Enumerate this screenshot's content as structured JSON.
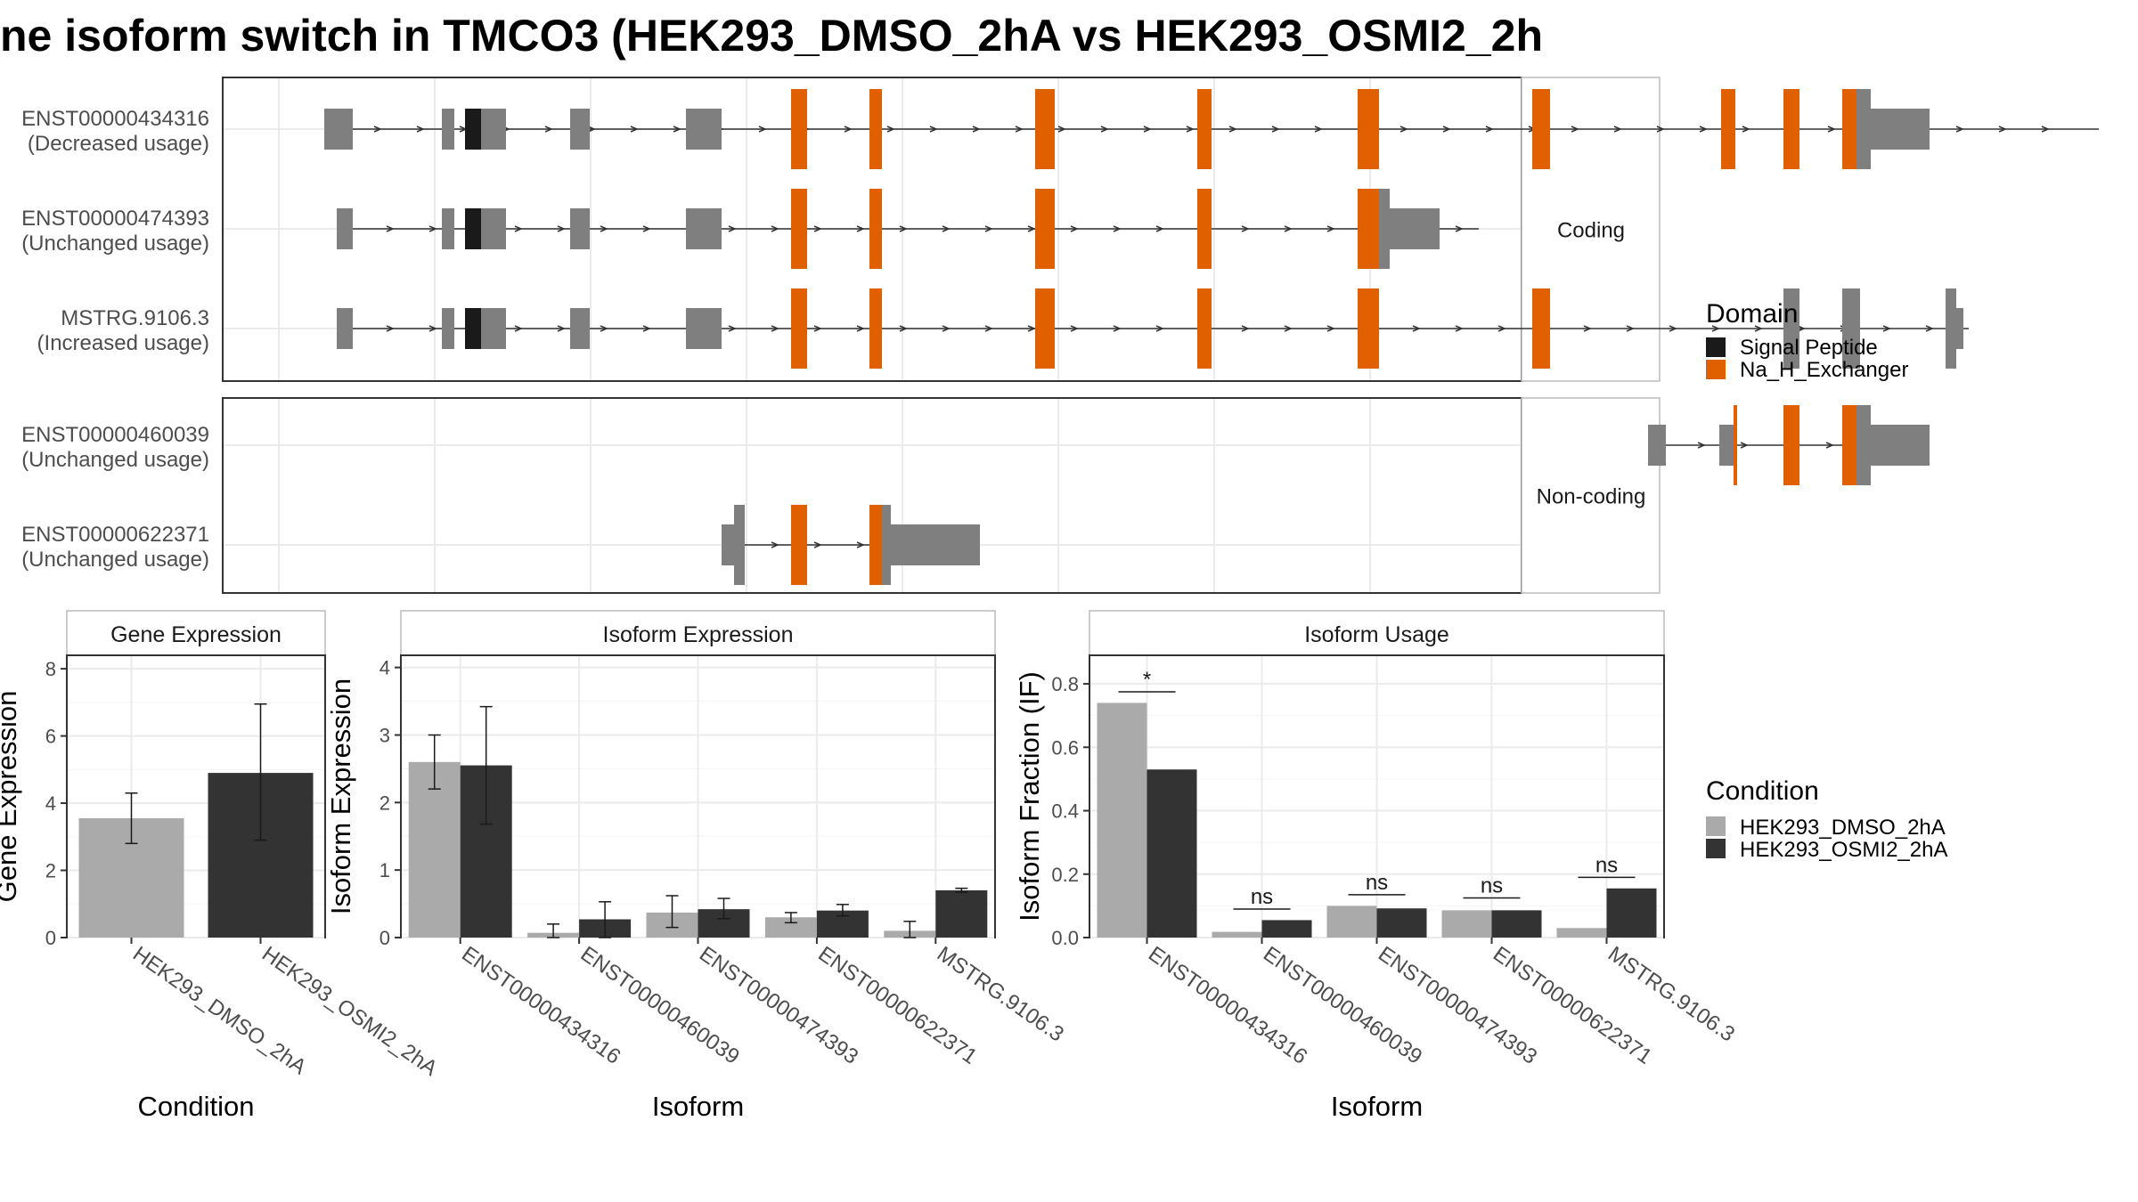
{
  "title": "ne isoform switch in TMCO3 (HEK293_DMSO_2hA vs HEK293_OSMI2_2h",
  "colors": {
    "utr": "#7f7f7f",
    "signal_peptide": "#1a1a1a",
    "na_h_exchanger": "#e06000",
    "dmso": "#aaaaaa",
    "osmi2": "#333333"
  },
  "legend_domain": {
    "title": "Domain",
    "items": [
      {
        "label": "Signal Peptide",
        "color": "#1a1a1a"
      },
      {
        "label": "Na_H_Exchanger",
        "color": "#e06000"
      }
    ]
  },
  "legend_condition": {
    "title": "Condition",
    "items": [
      {
        "label": "HEK293_DMSO_2hA",
        "color": "#aaaaaa"
      },
      {
        "label": "HEK293_OSMI2_2hA",
        "color": "#333333"
      }
    ]
  },
  "structure": {
    "facets": [
      {
        "strip": "Coding",
        "transcripts": [
          {
            "id": "ENST00000434316",
            "usage": "(Decreased usage)",
            "range": [
              57,
              1053
            ],
            "exons": [
              [
                57,
                73,
                "u",
                1
              ],
              [
                123,
                130,
                "u",
                1
              ],
              [
                136,
                145,
                "s",
                1
              ],
              [
                145,
                159,
                "u",
                1
              ],
              [
                195,
                206,
                "u",
                1
              ],
              [
                260,
                280,
                "u",
                1
              ],
              [
                319,
                328,
                "d",
                2
              ],
              [
                363,
                370,
                "d",
                2
              ],
              [
                456,
                467,
                "d",
                2
              ],
              [
                547,
                555,
                "d",
                2
              ],
              [
                637,
                649,
                "d",
                2
              ],
              [
                735,
                745,
                "d",
                2
              ],
              [
                841,
                849,
                "d",
                2
              ],
              [
                876,
                885,
                "d",
                2
              ],
              [
                909,
                917,
                "d",
                2
              ],
              [
                917,
                925,
                "u",
                2
              ],
              [
                925,
                958,
                "u",
                1
              ]
            ]
          },
          {
            "id": "ENST00000474393",
            "usage": "(Unchanged usage)",
            "range": [
              64,
              705
            ],
            "exons": [
              [
                64,
                73,
                "u",
                1
              ],
              [
                123,
                130,
                "u",
                1
              ],
              [
                136,
                145,
                "s",
                1
              ],
              [
                145,
                159,
                "u",
                1
              ],
              [
                195,
                206,
                "u",
                1
              ],
              [
                260,
                280,
                "u",
                1
              ],
              [
                319,
                328,
                "d",
                2
              ],
              [
                363,
                370,
                "d",
                2
              ],
              [
                456,
                467,
                "d",
                2
              ],
              [
                547,
                555,
                "d",
                2
              ],
              [
                637,
                649,
                "d",
                2
              ],
              [
                649,
                655,
                "u",
                2
              ],
              [
                655,
                683,
                "u",
                1
              ]
            ]
          },
          {
            "id": "MSTRG.9106.3",
            "usage": "(Increased usage)",
            "range": [
              64,
              980
            ],
            "exons": [
              [
                64,
                73,
                "u",
                1
              ],
              [
                123,
                130,
                "u",
                1
              ],
              [
                136,
                145,
                "s",
                1
              ],
              [
                145,
                159,
                "u",
                1
              ],
              [
                195,
                206,
                "u",
                1
              ],
              [
                260,
                280,
                "u",
                1
              ],
              [
                319,
                328,
                "d",
                2
              ],
              [
                363,
                370,
                "d",
                2
              ],
              [
                456,
                467,
                "d",
                2
              ],
              [
                547,
                555,
                "d",
                2
              ],
              [
                637,
                649,
                "d",
                2
              ],
              [
                735,
                745,
                "d",
                2
              ],
              [
                876,
                885,
                "u",
                2
              ],
              [
                909,
                919,
                "u",
                2
              ],
              [
                967,
                973,
                "u",
                2
              ],
              [
                973,
                977,
                "u",
                1
              ]
            ]
          }
        ]
      },
      {
        "strip": "Non-coding",
        "transcripts": [
          {
            "id": "ENST00000460039",
            "usage": "(Unchanged usage)",
            "range": [
              800,
              958
            ],
            "exons": [
              [
                800,
                810,
                "u",
                1
              ],
              [
                840,
                848,
                "u",
                1
              ],
              [
                848,
                850,
                "d",
                2
              ],
              [
                876,
                885,
                "d",
                2
              ],
              [
                909,
                917,
                "d",
                2
              ],
              [
                917,
                925,
                "u",
                2
              ],
              [
                925,
                958,
                "u",
                1
              ]
            ]
          },
          {
            "id": "ENST00000622371",
            "usage": "(Unchanged usage)",
            "range": [
              280,
              425
            ],
            "exons": [
              [
                280,
                287,
                "u",
                1
              ],
              [
                287,
                293,
                "u",
                2
              ],
              [
                319,
                328,
                "d",
                2
              ],
              [
                363,
                370,
                "d",
                2
              ],
              [
                370,
                375,
                "u",
                2
              ],
              [
                375,
                425,
                "u",
                1
              ]
            ]
          }
        ]
      }
    ]
  },
  "chart_data": [
    {
      "type": "bar",
      "title": "Gene Expression",
      "xlabel": "Condition",
      "ylabel": "Gene Expression",
      "ylim": [
        0,
        8.4
      ],
      "yticks": [
        "0",
        "2",
        "4",
        "6",
        "8"
      ],
      "categories": [
        "HEK293_DMSO_2hA",
        "HEK293_OSMI2_2hA"
      ],
      "values": [
        3.55,
        4.9
      ],
      "error_low": [
        2.8,
        2.9
      ],
      "error_high": [
        4.3,
        6.95
      ],
      "color_keys": [
        "dmso",
        "osmi2"
      ]
    },
    {
      "type": "bar",
      "title": "Isoform Expression",
      "xlabel": "Isoform",
      "ylabel": "Isoform Expression",
      "ylim": [
        0,
        4.18
      ],
      "yticks": [
        "0",
        "1",
        "2",
        "3",
        "4"
      ],
      "categories": [
        "ENST00000434316",
        "ENST00000460039",
        "ENST00000474393",
        "ENST00000622371",
        "MSTRG.9106.3"
      ],
      "series": [
        {
          "condition": "HEK293_DMSO_2hA",
          "color_key": "dmso",
          "values": [
            2.6,
            0.07,
            0.37,
            0.3,
            0.1
          ],
          "error_low": [
            2.2,
            0.0,
            0.15,
            0.22,
            0.0
          ],
          "error_high": [
            3.0,
            0.2,
            0.62,
            0.37,
            0.24
          ]
        },
        {
          "condition": "HEK293_OSMI2_2hA",
          "color_key": "osmi2",
          "values": [
            2.55,
            0.27,
            0.42,
            0.4,
            0.7
          ],
          "error_low": [
            1.68,
            0.0,
            0.28,
            0.32,
            0.67
          ],
          "error_high": [
            3.42,
            0.53,
            0.58,
            0.49,
            0.73
          ]
        }
      ]
    },
    {
      "type": "bar",
      "title": "Isoform Usage",
      "xlabel": "Isoform",
      "ylabel": "Isoform Fraction (IF)",
      "ylim": [
        0,
        0.89
      ],
      "yticks": [
        "0.0",
        "0.2",
        "0.4",
        "0.6",
        "0.8"
      ],
      "categories": [
        "ENST00000434316",
        "ENST00000460039",
        "ENST00000474393",
        "ENST00000622371",
        "MSTRG.9106.3"
      ],
      "series": [
        {
          "condition": "HEK293_DMSO_2hA",
          "color_key": "dmso",
          "values": [
            0.74,
            0.018,
            0.1,
            0.086,
            0.03
          ]
        },
        {
          "condition": "HEK293_OSMI2_2hA",
          "color_key": "osmi2",
          "values": [
            0.53,
            0.055,
            0.092,
            0.086,
            0.155
          ]
        }
      ],
      "significance": [
        {
          "label": "*",
          "y": 0.775
        },
        {
          "label": "ns",
          "y": 0.09
        },
        {
          "label": "ns",
          "y": 0.135
        },
        {
          "label": "ns",
          "y": 0.125
        },
        {
          "label": "ns",
          "y": 0.19
        }
      ]
    }
  ]
}
